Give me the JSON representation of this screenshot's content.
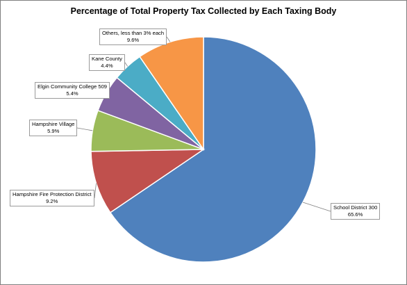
{
  "chart_data": {
    "type": "pie",
    "title": "Percentage of Total Property Tax Collected by Each Taxing Body",
    "start_angle_deg": 0,
    "direction": "clockwise",
    "slices": [
      {
        "label": "School District 300",
        "value": 65.6,
        "value_label": "65.6%",
        "color": "#4f81bd"
      },
      {
        "label": "Hampshire Fire Protection District",
        "value": 9.2,
        "value_label": "9.2%",
        "color": "#c0504d"
      },
      {
        "label": "Hampshire Village",
        "value": 5.9,
        "value_label": "5.9%",
        "color": "#9bbb59"
      },
      {
        "label": "Elgin Community College 509",
        "value": 5.4,
        "value_label": "5.4%",
        "color": "#8064a2"
      },
      {
        "label": "Kane County",
        "value": 4.4,
        "value_label": "4.4%",
        "color": "#4bacc6"
      },
      {
        "label": "Others, less than 3% each",
        "value": 9.6,
        "value_label": "9.6%",
        "color": "#f79646"
      }
    ]
  }
}
